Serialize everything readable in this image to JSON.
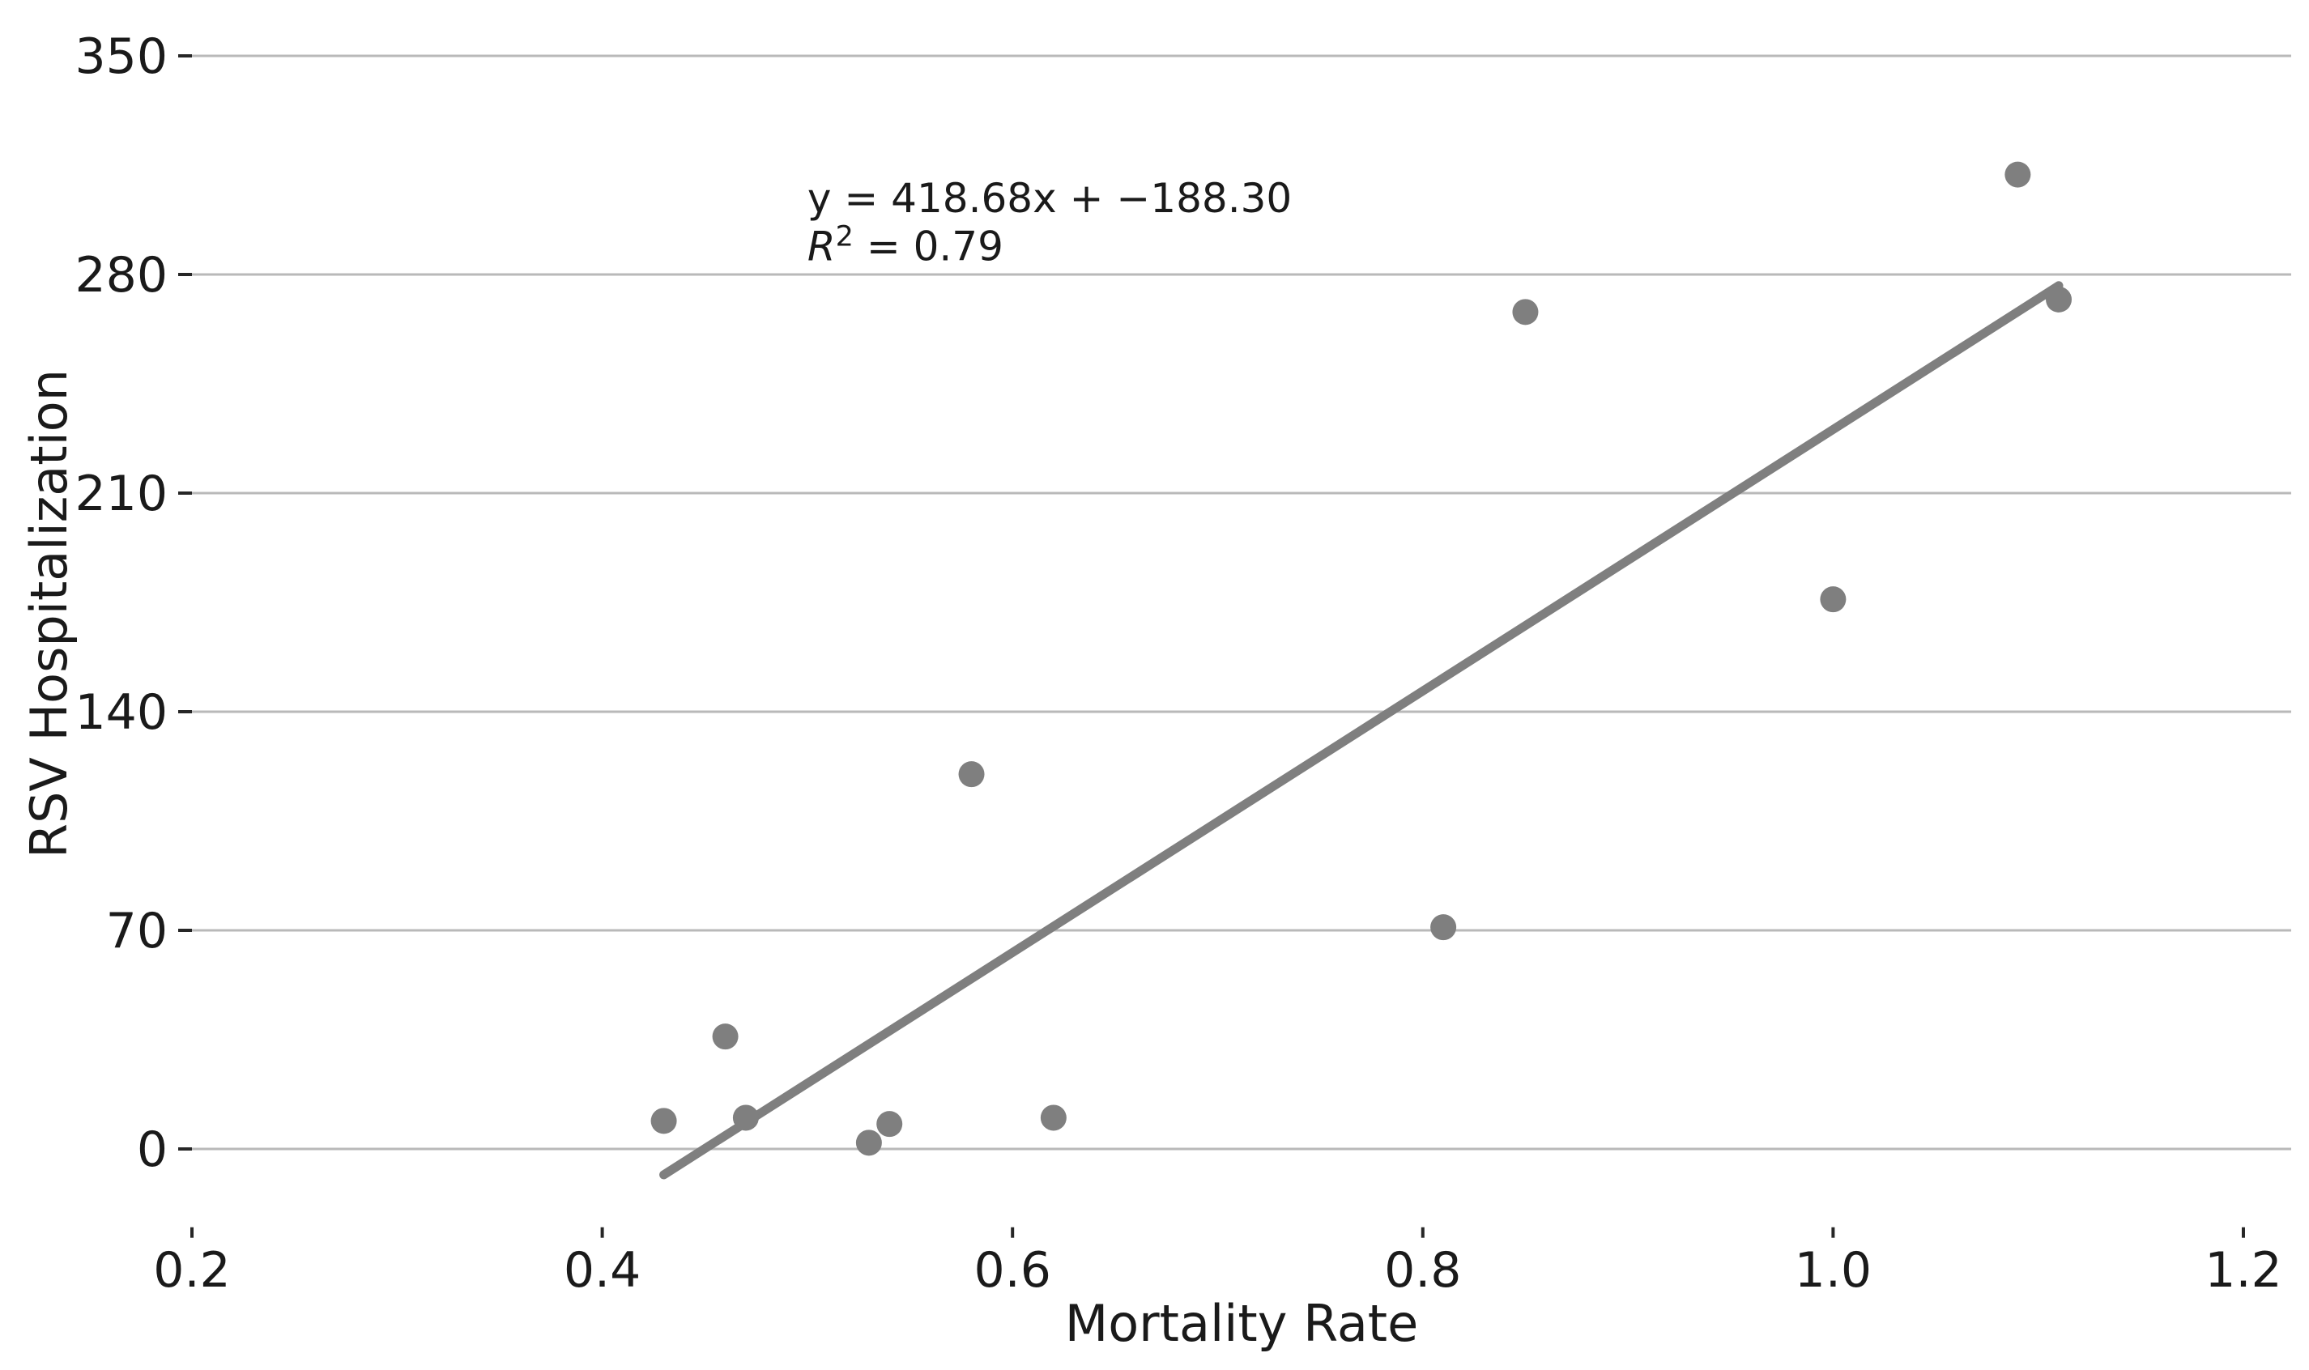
{
  "chart_data": {
    "type": "scatter",
    "title": "",
    "xlabel": "Mortality Rate",
    "ylabel": "RSV Hospitalization",
    "xlim": [
      0.2,
      1.2233
    ],
    "ylim": [
      -25.06,
      367.9
    ],
    "grid": "horizontal",
    "legend": "none",
    "x_ticks": [
      0.2,
      0.4,
      0.6,
      0.8,
      1.0,
      1.2
    ],
    "x_tick_labels": [
      "0.2",
      "0.4",
      "0.6",
      "0.8",
      "1.0",
      "1.2"
    ],
    "y_ticks": [
      0,
      70,
      140,
      210,
      280,
      350
    ],
    "y_tick_labels": [
      "0",
      "70",
      "140",
      "210",
      "280",
      "350"
    ],
    "points": [
      {
        "x": 0.43,
        "y": 9
      },
      {
        "x": 0.46,
        "y": 36
      },
      {
        "x": 0.47,
        "y": 10
      },
      {
        "x": 0.53,
        "y": 2
      },
      {
        "x": 0.54,
        "y": 8
      },
      {
        "x": 0.58,
        "y": 120
      },
      {
        "x": 0.62,
        "y": 10
      },
      {
        "x": 0.81,
        "y": 71
      },
      {
        "x": 0.85,
        "y": 268
      },
      {
        "x": 1.0,
        "y": 176
      },
      {
        "x": 1.09,
        "y": 312
      },
      {
        "x": 1.11,
        "y": 272
      }
    ],
    "regression_line": {
      "slope": 418.68,
      "intercept": -188.3,
      "r_squared": 0.79,
      "x_start": 0.43,
      "x_end": 1.11
    },
    "annotation": {
      "line1": "y = 418.68x + −188.30",
      "line2_var": "R",
      "line2_exponent": "2",
      "line2_rest": " = 0.79",
      "anchor_x": 0.5,
      "line1_y": 300,
      "line2_y": 284.5
    },
    "colors": {
      "point": "#7f7f7f",
      "regression_line": "#7f7f7f",
      "gridline": "#b9b9b9",
      "tick_mark": "#262626",
      "text": "#1a1a1a",
      "background": "#ffffff"
    }
  }
}
